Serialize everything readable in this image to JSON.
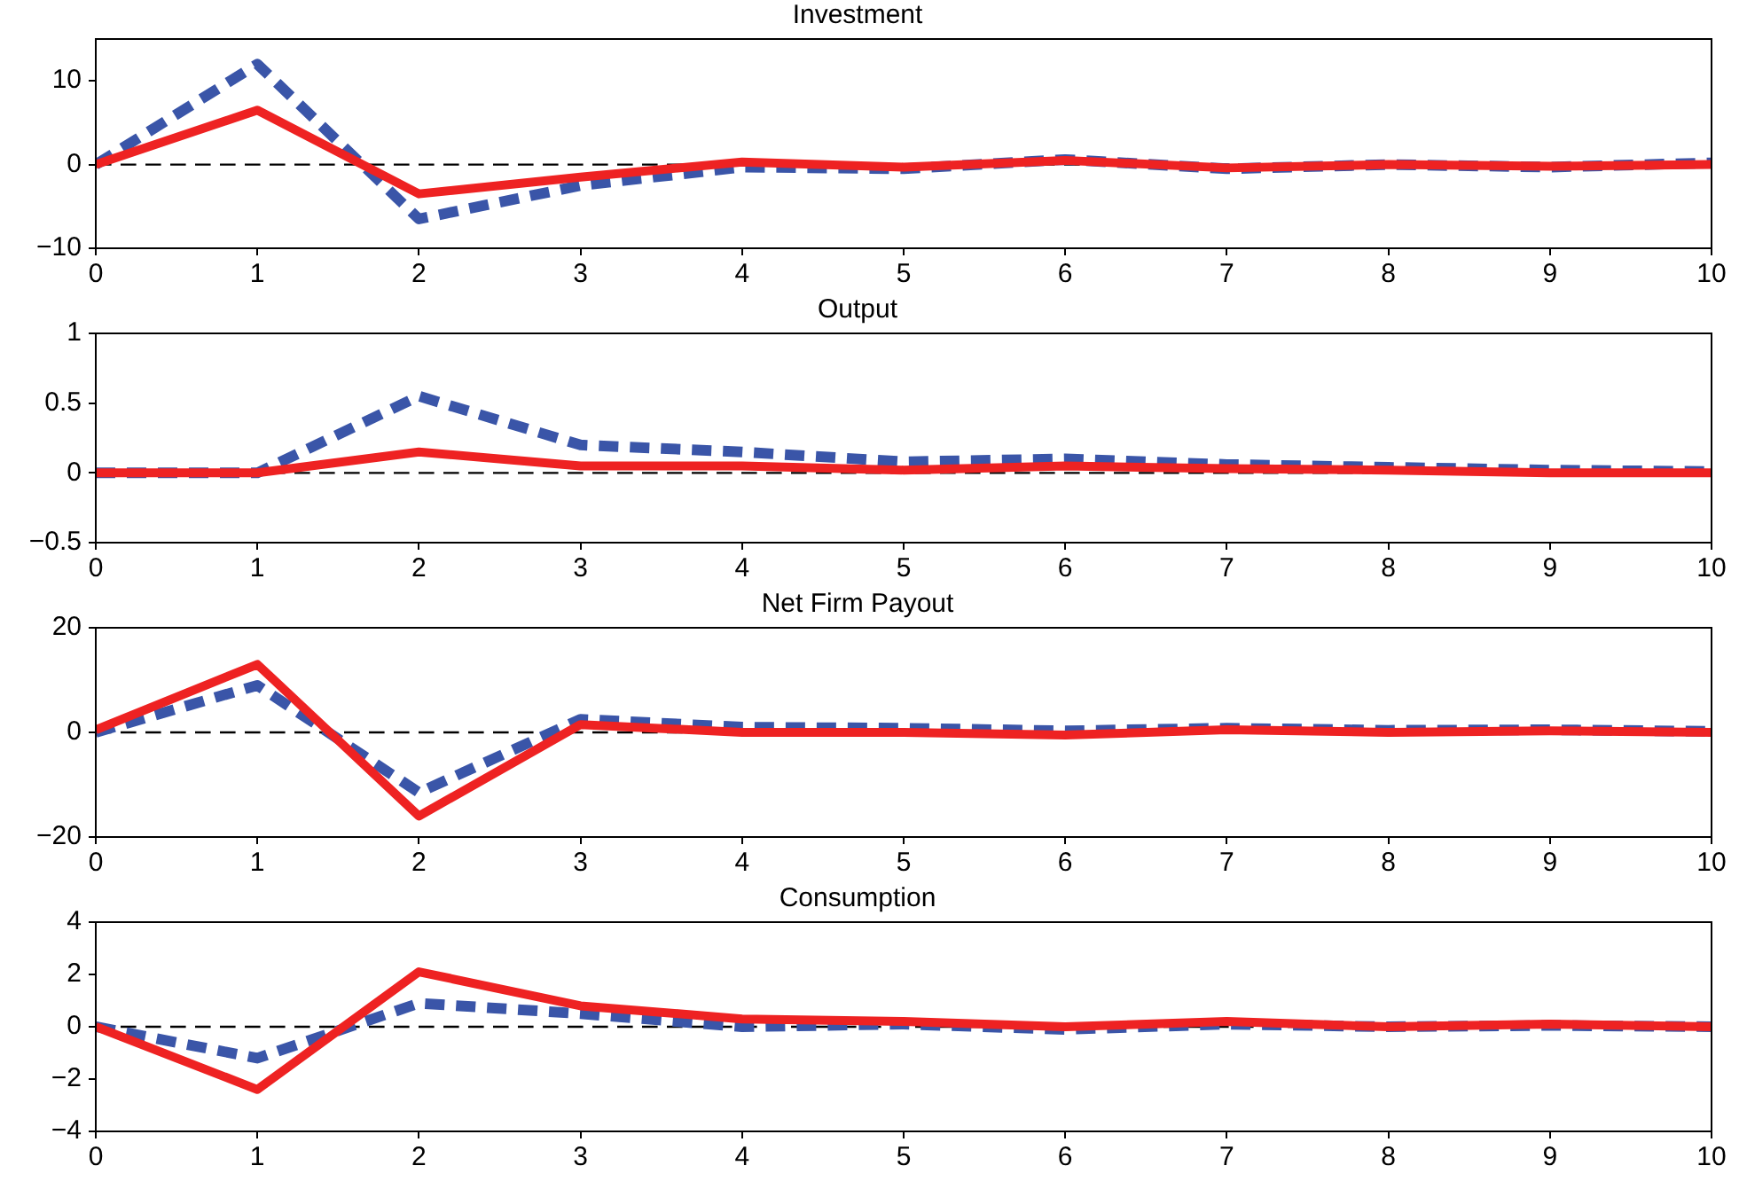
{
  "chart_data": [
    {
      "type": "line",
      "title": "Investment",
      "x": [
        0,
        1,
        2,
        3,
        4,
        5,
        6,
        7,
        8,
        9,
        10
      ],
      "xlim": [
        0,
        10
      ],
      "xticks": [
        0,
        1,
        2,
        3,
        4,
        5,
        6,
        7,
        8,
        9,
        10
      ],
      "ylim": [
        -10,
        15
      ],
      "yticks": [
        -10,
        0,
        10
      ],
      "grid": false,
      "legend": false,
      "series": [
        {
          "color": "#ee2222",
          "line_style": "solid",
          "values": [
            0,
            6.5,
            -3.5,
            -1.5,
            0.3,
            -0.3,
            0.5,
            -0.4,
            0,
            -0.2,
            0
          ]
        },
        {
          "color": "#3a55a8",
          "line_style": "dashed",
          "values": [
            0,
            12,
            -6.5,
            -2.5,
            -0.3,
            -0.5,
            0.6,
            -0.5,
            0,
            -0.3,
            0.2
          ]
        }
      ],
      "ref_lines": [
        {
          "axis": "y",
          "value": 0,
          "color": "#000000",
          "line_style": "dashed"
        }
      ]
    },
    {
      "type": "line",
      "title": "Output",
      "x": [
        0,
        1,
        2,
        3,
        4,
        5,
        6,
        7,
        8,
        9,
        10
      ],
      "xlim": [
        0,
        10
      ],
      "xticks": [
        0,
        1,
        2,
        3,
        4,
        5,
        6,
        7,
        8,
        9,
        10
      ],
      "ylim": [
        -0.5,
        1
      ],
      "yticks": [
        -0.5,
        0,
        0.5,
        1
      ],
      "grid": false,
      "legend": false,
      "series": [
        {
          "color": "#ee2222",
          "line_style": "solid",
          "values": [
            0,
            0,
            0.15,
            0.05,
            0.05,
            0.02,
            0.05,
            0.03,
            0.02,
            0,
            0
          ]
        },
        {
          "color": "#3a55a8",
          "line_style": "dashed",
          "values": [
            0,
            0,
            0.55,
            0.2,
            0.15,
            0.08,
            0.1,
            0.06,
            0.04,
            0.02,
            0.01
          ]
        }
      ],
      "ref_lines": [
        {
          "axis": "y",
          "value": 0,
          "color": "#000000",
          "line_style": "dashed"
        }
      ]
    },
    {
      "type": "line",
      "title": "Net Firm Payout",
      "x": [
        0,
        1,
        2,
        3,
        4,
        5,
        6,
        7,
        8,
        9,
        10
      ],
      "xlim": [
        0,
        10
      ],
      "xticks": [
        0,
        1,
        2,
        3,
        4,
        5,
        6,
        7,
        8,
        9,
        10
      ],
      "ylim": [
        -20,
        20
      ],
      "yticks": [
        -20,
        0,
        20
      ],
      "grid": false,
      "legend": false,
      "series": [
        {
          "color": "#ee2222",
          "line_style": "solid",
          "values": [
            0.5,
            13,
            -16,
            1.5,
            0,
            0,
            -0.5,
            0.5,
            0,
            0.3,
            0
          ]
        },
        {
          "color": "#3a55a8",
          "line_style": "dashed",
          "values": [
            0,
            9,
            -11.5,
            2.5,
            1,
            0.8,
            0.3,
            0.8,
            0.4,
            0.5,
            0.2
          ]
        }
      ],
      "ref_lines": [
        {
          "axis": "y",
          "value": 0,
          "color": "#000000",
          "line_style": "dashed"
        }
      ]
    },
    {
      "type": "line",
      "title": "Consumption",
      "x": [
        0,
        1,
        2,
        3,
        4,
        5,
        6,
        7,
        8,
        9,
        10
      ],
      "xlim": [
        0,
        10
      ],
      "xticks": [
        0,
        1,
        2,
        3,
        4,
        5,
        6,
        7,
        8,
        9,
        10
      ],
      "ylim": [
        -4,
        4
      ],
      "yticks": [
        -4,
        -2,
        0,
        2,
        4
      ],
      "grid": false,
      "legend": false,
      "series": [
        {
          "color": "#ee2222",
          "line_style": "solid",
          "values": [
            0,
            -2.4,
            2.1,
            0.8,
            0.3,
            0.2,
            0,
            0.2,
            0,
            0.1,
            0
          ]
        },
        {
          "color": "#3a55a8",
          "line_style": "dashed",
          "values": [
            0,
            -1.2,
            0.9,
            0.5,
            0,
            0.1,
            -0.1,
            0.1,
            0,
            0.05,
            0
          ]
        }
      ],
      "ref_lines": [
        {
          "axis": "y",
          "value": 0,
          "color": "#000000",
          "line_style": "dashed"
        }
      ]
    }
  ]
}
